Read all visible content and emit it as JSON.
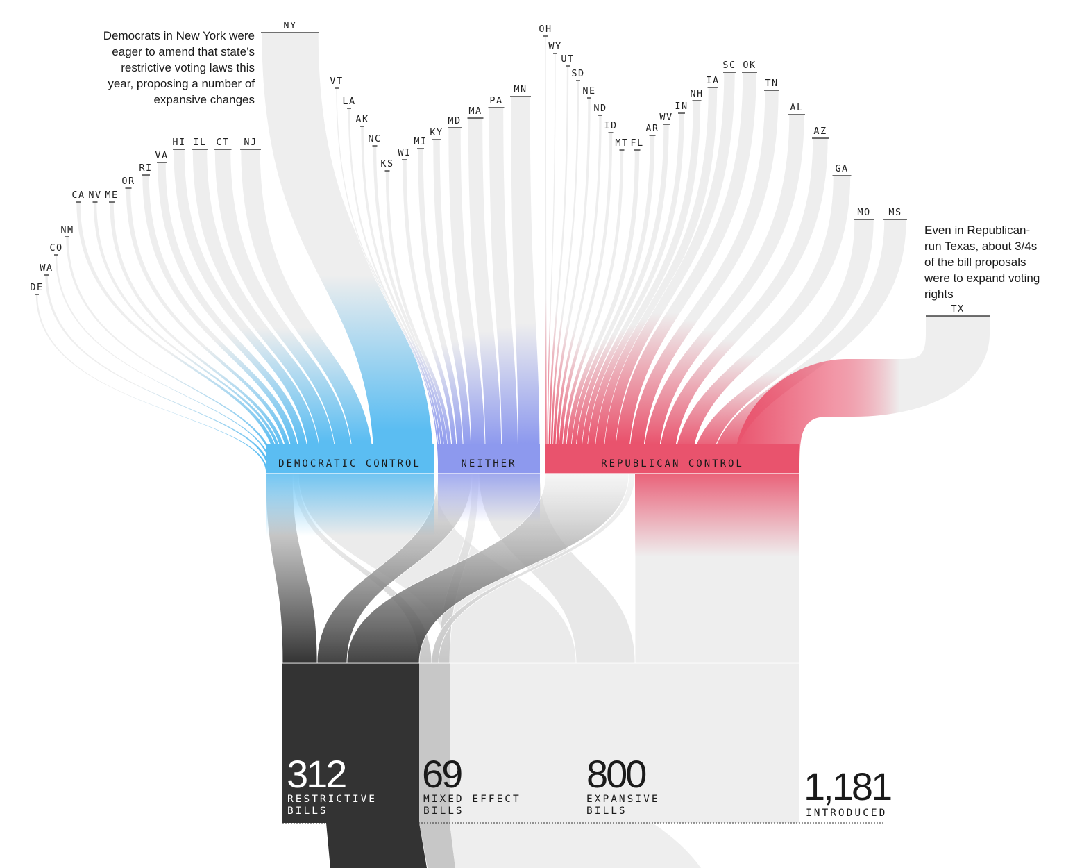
{
  "chart_data": {
    "type": "sankey",
    "title": "",
    "stages": [
      "state",
      "control",
      "outcome"
    ],
    "states": [
      {
        "name": "DE",
        "group": "dem"
      },
      {
        "name": "WA",
        "group": "dem"
      },
      {
        "name": "CO",
        "group": "dem"
      },
      {
        "name": "NM",
        "group": "dem"
      },
      {
        "name": "CA",
        "group": "dem"
      },
      {
        "name": "NV",
        "group": "dem"
      },
      {
        "name": "ME",
        "group": "dem"
      },
      {
        "name": "OR",
        "group": "dem"
      },
      {
        "name": "RI",
        "group": "dem"
      },
      {
        "name": "VA",
        "group": "dem"
      },
      {
        "name": "HI",
        "group": "dem"
      },
      {
        "name": "IL",
        "group": "dem"
      },
      {
        "name": "CT",
        "group": "dem"
      },
      {
        "name": "NJ",
        "group": "dem"
      },
      {
        "name": "NY",
        "group": "dem"
      },
      {
        "name": "VT",
        "group": "neither"
      },
      {
        "name": "LA",
        "group": "neither"
      },
      {
        "name": "AK",
        "group": "neither"
      },
      {
        "name": "NC",
        "group": "neither"
      },
      {
        "name": "KS",
        "group": "neither"
      },
      {
        "name": "WI",
        "group": "neither"
      },
      {
        "name": "MI",
        "group": "neither"
      },
      {
        "name": "KY",
        "group": "neither"
      },
      {
        "name": "MD",
        "group": "neither"
      },
      {
        "name": "MA",
        "group": "neither"
      },
      {
        "name": "PA",
        "group": "neither"
      },
      {
        "name": "MN",
        "group": "neither"
      },
      {
        "name": "OH",
        "group": "rep"
      },
      {
        "name": "WY",
        "group": "rep"
      },
      {
        "name": "UT",
        "group": "rep"
      },
      {
        "name": "SD",
        "group": "rep"
      },
      {
        "name": "NE",
        "group": "rep"
      },
      {
        "name": "ND",
        "group": "rep"
      },
      {
        "name": "ID",
        "group": "rep"
      },
      {
        "name": "MT",
        "group": "rep"
      },
      {
        "name": "FL",
        "group": "rep"
      },
      {
        "name": "AR",
        "group": "rep"
      },
      {
        "name": "WV",
        "group": "rep"
      },
      {
        "name": "IN",
        "group": "rep"
      },
      {
        "name": "NH",
        "group": "rep"
      },
      {
        "name": "IA",
        "group": "rep"
      },
      {
        "name": "SC",
        "group": "rep"
      },
      {
        "name": "OK",
        "group": "rep"
      },
      {
        "name": "TN",
        "group": "rep"
      },
      {
        "name": "AL",
        "group": "rep"
      },
      {
        "name": "AZ",
        "group": "rep"
      },
      {
        "name": "GA",
        "group": "rep"
      },
      {
        "name": "MO",
        "group": "rep"
      },
      {
        "name": "MS",
        "group": "rep"
      },
      {
        "name": "TX",
        "group": "rep"
      }
    ],
    "control_groups": [
      {
        "key": "dem",
        "label": "DEMOCRATIC CONTROL",
        "color": "#5bbdf2"
      },
      {
        "key": "neither",
        "label": "NEITHER",
        "color": "#8d99ee"
      },
      {
        "key": "rep",
        "label": "REPUBLICAN CONTROL",
        "color": "#e9536d"
      }
    ],
    "outcomes": [
      {
        "key": "restrictive",
        "value": 312,
        "label": "RESTRICTIVE BILLS",
        "color": "#333333"
      },
      {
        "key": "mixed",
        "value": 69,
        "label": "MIXED EFFECT BILLS",
        "color": "#c7c7c7"
      },
      {
        "key": "expansive",
        "value": 800,
        "label": "EXPANSIVE BILLS",
        "color": "#eeeeee"
      }
    ],
    "total": {
      "value": "1,181",
      "label": "INTRODUCED"
    },
    "annotations": [
      "Democrats in New York were eager to amend that state’s restrictive voting laws this year, proposing a number of expansive changes",
      "Even in Republican-run Texas, about 3/4s of the bill proposals were to expand voting rights"
    ],
    "colors": {
      "flow_gray": "#eeeeee",
      "restrictive": "#333333",
      "mixed": "#c7c7c7"
    }
  }
}
